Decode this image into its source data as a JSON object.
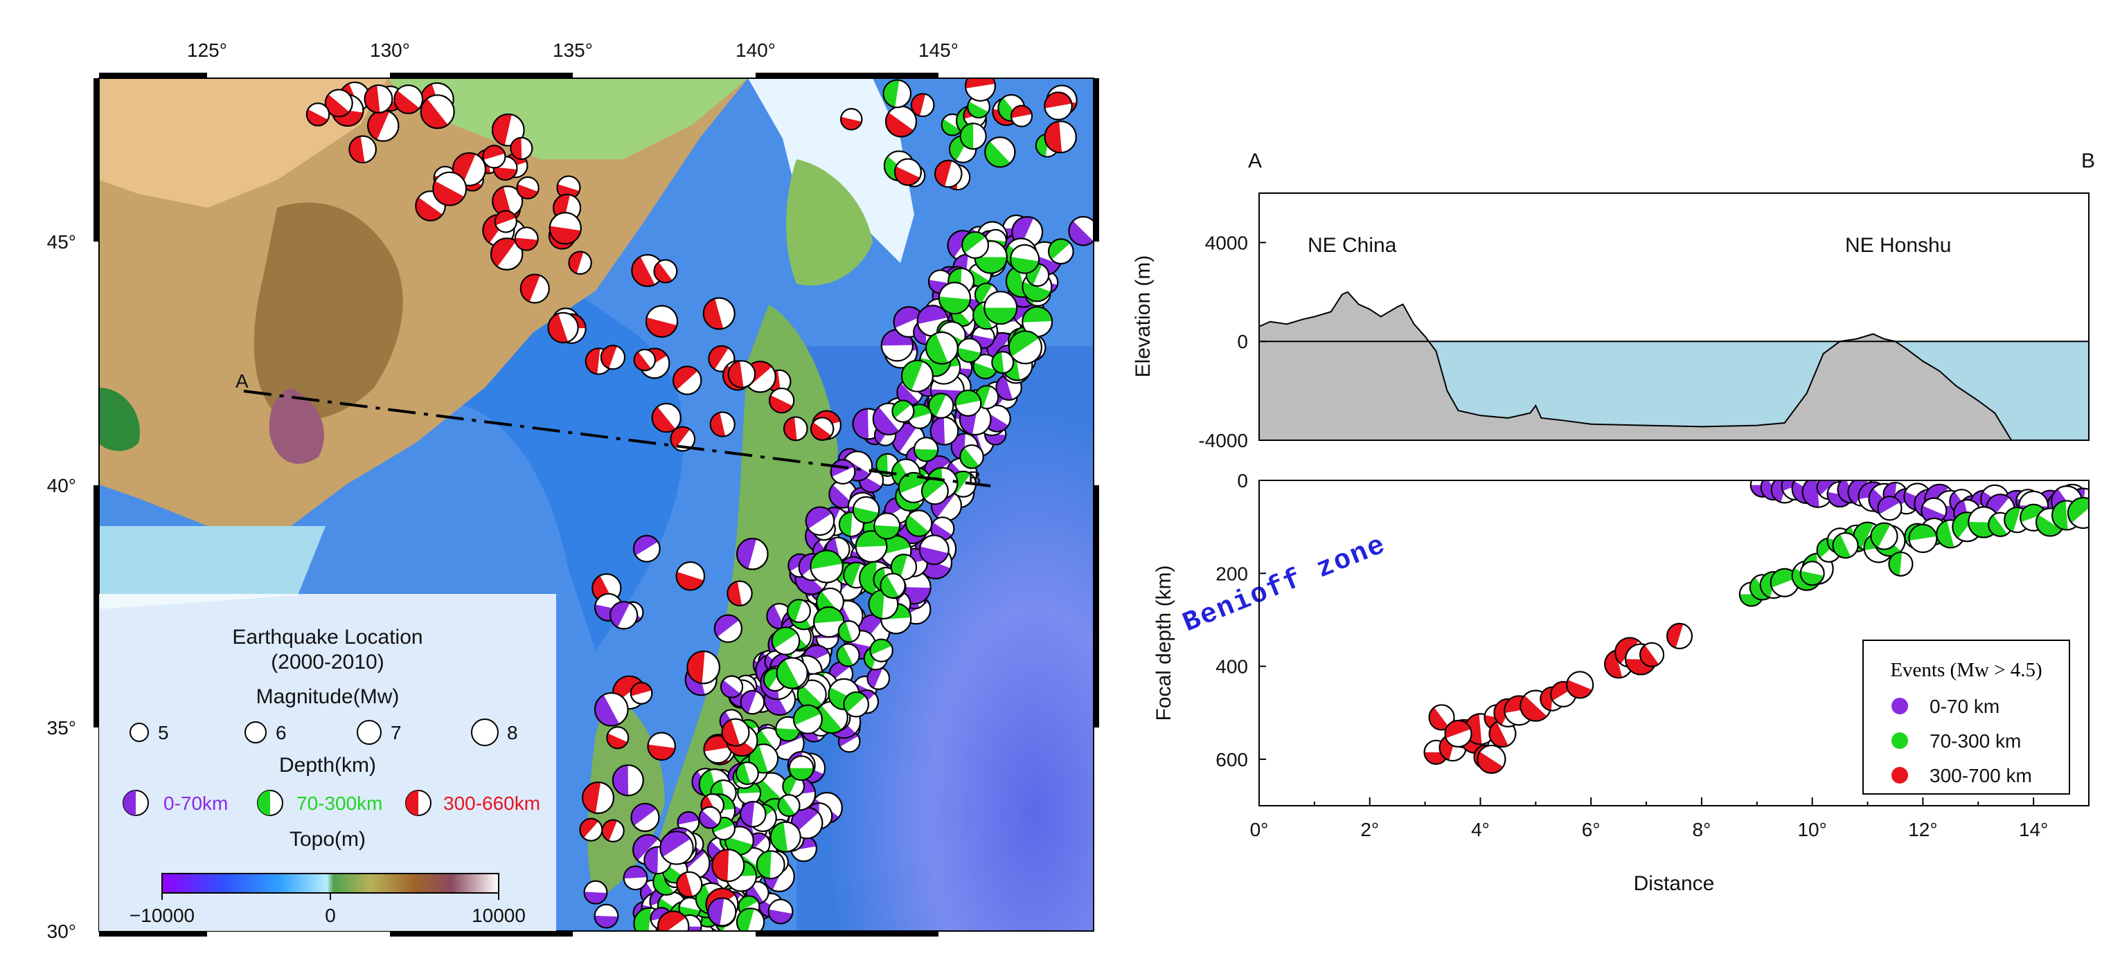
{
  "colors": {
    "shallow": "#8a2be2",
    "intermediate": "#1ed61e",
    "deep": "#e8141e",
    "sea": "#add8e6",
    "land": "#bdbdbd",
    "benioff": "#2222dd"
  },
  "map": {
    "lon_ticks": [
      "125°",
      "130°",
      "135°",
      "140°",
      "145°"
    ],
    "lat_ticks": [
      "45°",
      "40°",
      "35°",
      "30°"
    ],
    "profile_labels": {
      "a": "A",
      "b": "B"
    },
    "legend": {
      "title": "Earthquake Location",
      "years": "(2000-2010)",
      "magnitude_title": "Magnitude(Mw)",
      "magnitudes": [
        "5",
        "6",
        "7",
        "8"
      ],
      "depth_title": "Depth(km)",
      "depths": [
        "0-70km",
        "70-300km",
        "300-660km"
      ],
      "topo_title": "Topo(m)",
      "topo_ticks": [
        "−10000",
        "0",
        "10000"
      ]
    }
  },
  "chart_data": [
    {
      "type": "area",
      "title": "",
      "xlabel": "",
      "ylabel": "Elevation (m)",
      "ylim": [
        -4000,
        6000
      ],
      "yticks": [
        "4000",
        "0",
        "-4000"
      ],
      "xlim": [
        0,
        15
      ],
      "endpoints": [
        "A",
        "B"
      ],
      "annotations": [
        "NE China",
        "NE Honshu"
      ],
      "series": [
        {
          "x": [
            0,
            0.2,
            0.5,
            0.8,
            1.0,
            1.3,
            1.5,
            1.6,
            1.8,
            2.0,
            2.2,
            2.5,
            2.6,
            2.8,
            3.0,
            3.2,
            3.4,
            3.6,
            4.0,
            4.5,
            4.9,
            5.0,
            5.1,
            5.5,
            6.0,
            7.0,
            8.0,
            9.0,
            9.5,
            9.9,
            10.2,
            10.5,
            10.8,
            11.1,
            11.3,
            11.5,
            11.7,
            12.0,
            12.3,
            12.6,
            13.0,
            13.3,
            13.6,
            15.0
          ],
          "y": [
            600,
            800,
            700,
            900,
            1000,
            1200,
            1900,
            2000,
            1500,
            1300,
            1000,
            1400,
            1500,
            700,
            200,
            -400,
            -2000,
            -2800,
            -3000,
            -3100,
            -2900,
            -2600,
            -3100,
            -3200,
            -3350,
            -3400,
            -3450,
            -3400,
            -3300,
            -2100,
            -500,
            0,
            100,
            300,
            100,
            0,
            -300,
            -800,
            -1200,
            -1800,
            -2400,
            -2900,
            -4100,
            -4100
          ]
        }
      ]
    },
    {
      "type": "scatter",
      "title": "",
      "xlabel": "Distance",
      "ylabel": "Focal depth (km)",
      "xlim": [
        0,
        15
      ],
      "ylim": [
        700,
        0
      ],
      "xticks": [
        "0°",
        "2°",
        "4°",
        "6°",
        "8°",
        "10°",
        "12°",
        "14°"
      ],
      "yticks": [
        "0",
        "200",
        "400",
        "600"
      ],
      "annotation": "Benioff zone",
      "legend": {
        "title": "Events (Mw > 4.5)",
        "entries": [
          "0-70 km",
          "70-300 km",
          "300-700 km"
        ]
      },
      "series": [
        {
          "name": "0-70 km",
          "x": [
            9.1,
            9.3,
            9.5,
            9.7,
            9.9,
            10.1,
            10.3,
            10.5,
            10.7,
            10.9,
            11.1,
            11.3,
            11.5,
            11.7,
            11.9,
            12.1,
            12.3,
            12.5,
            12.7,
            12.9,
            13.1,
            13.3,
            13.5,
            13.7,
            13.9,
            14.1,
            14.3,
            14.5,
            14.7,
            14.9,
            11.4,
            12.2,
            12.8,
            13.4,
            14.0,
            14.6
          ],
          "y": [
            10,
            15,
            20,
            12,
            18,
            25,
            15,
            30,
            20,
            25,
            35,
            40,
            30,
            45,
            35,
            50,
            40,
            55,
            45,
            60,
            50,
            40,
            65,
            55,
            45,
            60,
            50,
            55,
            40,
            50,
            60,
            65,
            70,
            60,
            55,
            45
          ]
        },
        {
          "name": "70-300 km",
          "x": [
            8.9,
            9.1,
            9.3,
            9.5,
            9.9,
            10.1,
            10.3,
            10.5,
            10.8,
            11.0,
            11.2,
            11.4,
            11.6,
            11.9,
            12.2,
            12.5,
            12.8,
            13.1,
            13.4,
            13.7,
            14.0,
            14.3,
            14.6,
            14.9,
            10.0,
            10.6,
            11.3,
            12.0
          ],
          "y": [
            245,
            230,
            225,
            220,
            205,
            190,
            150,
            130,
            125,
            120,
            145,
            130,
            180,
            120,
            110,
            115,
            100,
            90,
            95,
            85,
            80,
            90,
            75,
            70,
            200,
            140,
            120,
            125
          ]
        },
        {
          "name": "300-700 km",
          "x": [
            3.2,
            3.3,
            3.5,
            3.7,
            3.9,
            4.0,
            4.1,
            4.3,
            4.4,
            4.5,
            4.7,
            5.0,
            5.3,
            5.5,
            5.8,
            6.5,
            6.7,
            6.9,
            7.1,
            7.6,
            3.6,
            4.2
          ],
          "y": [
            585,
            510,
            575,
            545,
            555,
            535,
            595,
            510,
            545,
            500,
            495,
            485,
            470,
            460,
            440,
            395,
            370,
            385,
            375,
            335,
            545,
            600
          ]
        }
      ]
    }
  ]
}
